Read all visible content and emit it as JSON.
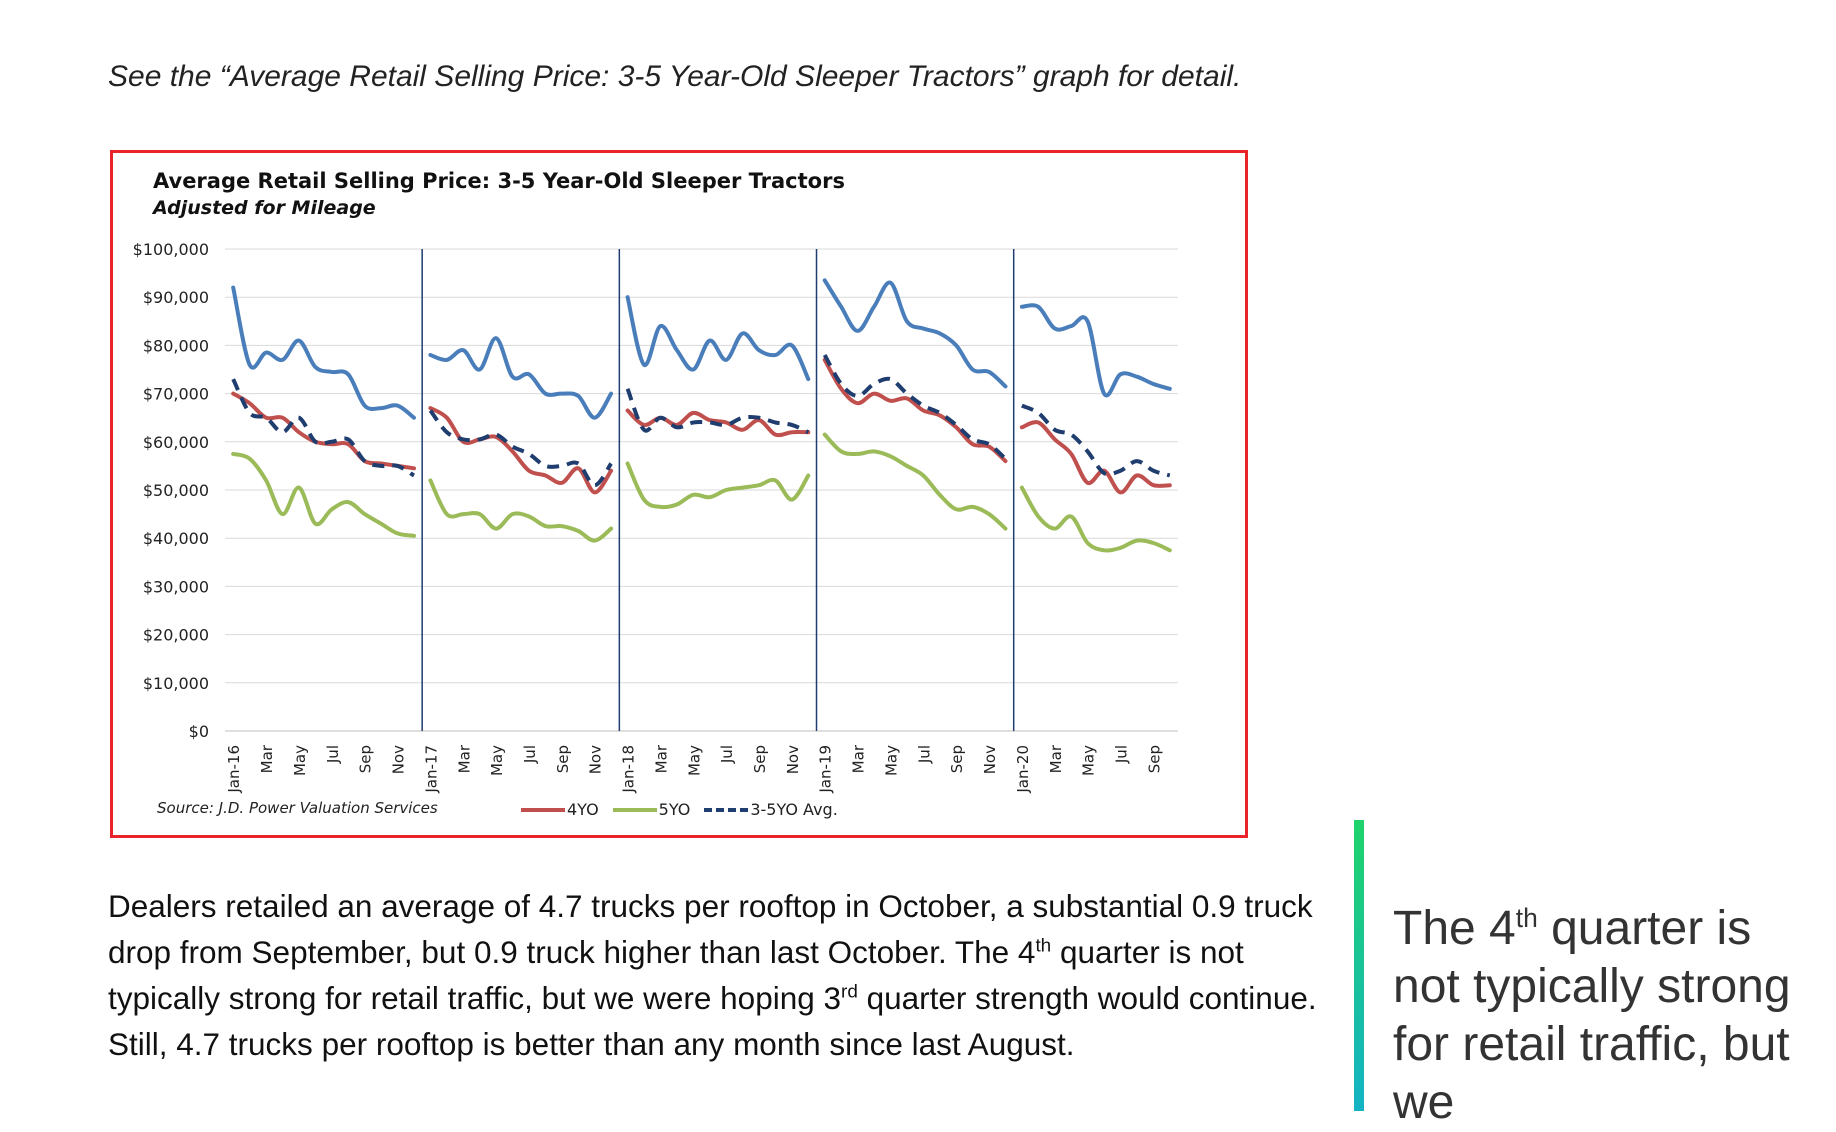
{
  "intro": "See the “Average Retail Selling Price: 3-5 Year-Old Sleeper Tractors” graph for detail.",
  "chart_data": {
    "type": "line",
    "title": "Average Retail Selling Price: 3-5 Year-Old Sleeper Tractors",
    "subtitle": "Adjusted for Mileage",
    "source": "Source: J.D. Power Valuation Services",
    "ylim": [
      0,
      100000
    ],
    "y_ticks": [
      "$0",
      "$10,000",
      "$20,000",
      "$30,000",
      "$40,000",
      "$50,000",
      "$60,000",
      "$70,000",
      "$80,000",
      "$90,000",
      "$100,000"
    ],
    "grid": true,
    "legend_position": "bottom",
    "x_tick_labels": [
      "Jan-16",
      "Mar",
      "May",
      "Jul",
      "Sep",
      "Nov",
      "Jan-17",
      "Mar",
      "May",
      "Jul",
      "Sep",
      "Nov",
      "Jan-18",
      "Mar",
      "May",
      "Jul",
      "Sep",
      "Nov",
      "Jan-19",
      "Mar",
      "May",
      "Jul",
      "Sep",
      "Nov",
      "Jan-20",
      "Mar",
      "May",
      "Jul",
      "Sep"
    ],
    "categories": [
      "Jan-16",
      "Feb-16",
      "Mar-16",
      "Apr-16",
      "May-16",
      "Jun-16",
      "Jul-16",
      "Aug-16",
      "Sep-16",
      "Oct-16",
      "Nov-16",
      "Dec-16",
      "Jan-17",
      "Feb-17",
      "Mar-17",
      "Apr-17",
      "May-17",
      "Jun-17",
      "Jul-17",
      "Aug-17",
      "Sep-17",
      "Oct-17",
      "Nov-17",
      "Dec-17",
      "Jan-18",
      "Feb-18",
      "Mar-18",
      "Apr-18",
      "May-18",
      "Jun-18",
      "Jul-18",
      "Aug-18",
      "Sep-18",
      "Oct-18",
      "Nov-18",
      "Dec-18",
      "Jan-19",
      "Feb-19",
      "Mar-19",
      "Apr-19",
      "May-19",
      "Jun-19",
      "Jul-19",
      "Aug-19",
      "Sep-19",
      "Oct-19",
      "Nov-19",
      "Dec-19",
      "Jan-20",
      "Feb-20",
      "Mar-20",
      "Apr-20",
      "May-20",
      "Jun-20",
      "Jul-20",
      "Aug-20",
      "Sep-20",
      "Oct-20"
    ],
    "year_dividers": [
      "Jan-17",
      "Jan-18",
      "Jan-19",
      "Jan-20"
    ],
    "series_unlabeled_top": {
      "color": "#4a7ebb",
      "segments": [
        [
          92000,
          76000,
          78500,
          77000,
          81000,
          75500,
          74500,
          74000,
          67500,
          67000,
          67500,
          65000
        ],
        [
          78000,
          77000,
          79000,
          75000,
          81500,
          73500,
          74000,
          70000,
          70000,
          69500,
          65000,
          70000
        ],
        [
          90000,
          76000,
          84000,
          79000,
          75000,
          81000,
          77000,
          82500,
          79000,
          78000,
          80000,
          73000
        ],
        [
          93500,
          88000,
          83000,
          88000,
          93000,
          85000,
          83500,
          82500,
          80000,
          75000,
          74500,
          71500
        ],
        [
          88000,
          88000,
          83500,
          84000,
          85000,
          70000,
          74000,
          73500,
          72000,
          71000
        ]
      ]
    },
    "series": [
      {
        "name": "4YO",
        "color": "#c0504d",
        "dashed": false,
        "segments": [
          [
            70000,
            68000,
            65000,
            65000,
            62000,
            60000,
            59500,
            59500,
            56000,
            55500,
            55000,
            54500
          ],
          [
            67000,
            65000,
            60000,
            60500,
            61000,
            58000,
            54000,
            53000,
            51500,
            54500,
            49500,
            54000
          ],
          [
            66500,
            63500,
            65000,
            63500,
            66000,
            64500,
            64000,
            62500,
            64500,
            61500,
            62000,
            62000
          ],
          [
            77000,
            71000,
            68000,
            70000,
            68500,
            69000,
            66500,
            65500,
            63000,
            59500,
            59000,
            56000
          ],
          [
            63000,
            64000,
            60500,
            57500,
            51500,
            54000,
            49500,
            53000,
            51000,
            51000
          ]
        ]
      },
      {
        "name": "5YO",
        "color": "#9bbb59",
        "dashed": false,
        "segments": [
          [
            57500,
            56500,
            52000,
            45000,
            50500,
            43000,
            46000,
            47500,
            45000,
            43000,
            41000,
            40500
          ],
          [
            52000,
            45000,
            45000,
            45000,
            42000,
            45000,
            44500,
            42500,
            42500,
            41500,
            39500,
            42000
          ],
          [
            55500,
            48000,
            46500,
            47000,
            49000,
            48500,
            50000,
            50500,
            51000,
            52000,
            48000,
            53000
          ],
          [
            61500,
            58000,
            57500,
            58000,
            57000,
            55000,
            53000,
            49000,
            46000,
            46500,
            45000,
            42000
          ],
          [
            50500,
            44500,
            42000,
            44500,
            39000,
            37500,
            38000,
            39500,
            39000,
            37500
          ]
        ]
      },
      {
        "name": "3-5YO Avg.",
        "color": "#1f3d6e",
        "dashed": true,
        "segments": [
          [
            73000,
            66000,
            65000,
            62000,
            65000,
            60000,
            60000,
            60500,
            56000,
            55000,
            55000,
            53000
          ],
          [
            66500,
            62000,
            60500,
            60500,
            61500,
            59000,
            57500,
            55000,
            55000,
            55500,
            51000,
            55500
          ],
          [
            71000,
            62500,
            65000,
            63000,
            64000,
            64000,
            63500,
            65000,
            65000,
            64000,
            63500,
            62000
          ],
          [
            78000,
            72000,
            69500,
            72000,
            73000,
            70000,
            67500,
            66000,
            63500,
            60500,
            59500,
            56500
          ],
          [
            67500,
            66000,
            62500,
            61500,
            58000,
            53500,
            54000,
            56000,
            54000,
            53000
          ]
        ]
      }
    ]
  },
  "body": {
    "part1": "Dealers retailed an average of 4.7 trucks per rooftop in October, a substantial 0.9 truck drop from September, but 0.9 truck higher than last October. The 4",
    "sup1": "th",
    "part2": " quarter is not typically strong for retail traffic, but we were hoping 3",
    "sup2": "rd",
    "part3": " quarter strength would continue. Still, 4.7 trucks per rooftop is better than any month since last August."
  },
  "pullquote": {
    "part1": "The 4",
    "sup": "th",
    "part2": " quarter is not typically strong for retail traffic, but we"
  }
}
